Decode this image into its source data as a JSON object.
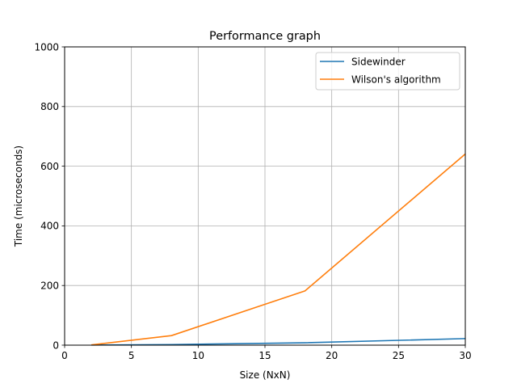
{
  "chart_data": {
    "type": "line",
    "title": "Performance graph",
    "xlabel": "Size (NxN)",
    "ylabel": "Time (microseconds)",
    "xlim": [
      0,
      30
    ],
    "ylim": [
      0,
      1000
    ],
    "xticks": [
      0,
      5,
      10,
      15,
      20,
      25,
      30
    ],
    "yticks": [
      0,
      200,
      400,
      600,
      800,
      1000
    ],
    "grid": true,
    "legend_position": "top-right",
    "series": [
      {
        "name": "Sidewinder",
        "color": "#1f77b4",
        "x": [
          2,
          8,
          18,
          30
        ],
        "y": [
          0.5,
          2,
          8,
          22
        ]
      },
      {
        "name": "Wilson's algorithm",
        "color": "#ff7f0e",
        "x": [
          2,
          8,
          18,
          30
        ],
        "y": [
          1,
          32,
          182,
          641
        ]
      }
    ]
  }
}
